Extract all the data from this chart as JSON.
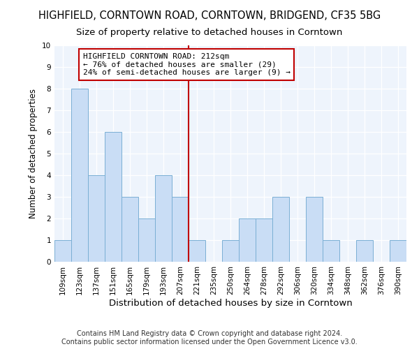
{
  "title": "HIGHFIELD, CORNTOWN ROAD, CORNTOWN, BRIDGEND, CF35 5BG",
  "subtitle": "Size of property relative to detached houses in Corntown",
  "xlabel": "Distribution of detached houses by size in Corntown",
  "ylabel": "Number of detached properties",
  "categories": [
    "109sqm",
    "123sqm",
    "137sqm",
    "151sqm",
    "165sqm",
    "179sqm",
    "193sqm",
    "207sqm",
    "221sqm",
    "235sqm",
    "250sqm",
    "264sqm",
    "278sqm",
    "292sqm",
    "306sqm",
    "320sqm",
    "334sqm",
    "348sqm",
    "362sqm",
    "376sqm",
    "390sqm"
  ],
  "values": [
    1,
    8,
    4,
    6,
    3,
    2,
    4,
    3,
    1,
    0,
    1,
    2,
    2,
    3,
    0,
    3,
    1,
    0,
    1,
    0,
    1
  ],
  "bar_color": "#c9ddf5",
  "bar_edge_color": "#7aafd4",
  "vline_color": "#c00000",
  "annotation_text": "HIGHFIELD CORNTOWN ROAD: 212sqm\n← 76% of detached houses are smaller (29)\n24% of semi-detached houses are larger (9) →",
  "annotation_box_color": "#ffffff",
  "annotation_box_edge": "#c00000",
  "ylim": [
    0,
    10
  ],
  "yticks": [
    0,
    1,
    2,
    3,
    4,
    5,
    6,
    7,
    8,
    9,
    10
  ],
  "footer": "Contains HM Land Registry data © Crown copyright and database right 2024.\nContains public sector information licensed under the Open Government Licence v3.0.",
  "title_fontsize": 10.5,
  "subtitle_fontsize": 9.5,
  "xlabel_fontsize": 9.5,
  "ylabel_fontsize": 8.5,
  "tick_fontsize": 7.5,
  "annot_fontsize": 8,
  "footer_fontsize": 7,
  "bg_color": "#eef4fc"
}
